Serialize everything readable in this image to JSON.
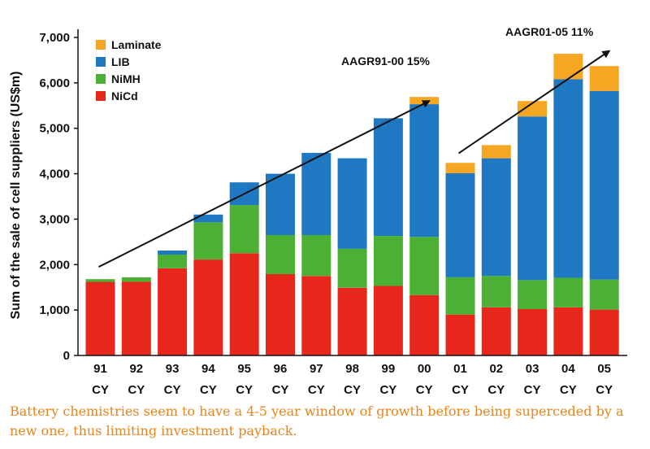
{
  "chart_data": {
    "type": "bar",
    "stacked": true,
    "categories": [
      "91",
      "92",
      "93",
      "94",
      "95",
      "96",
      "97",
      "98",
      "99",
      "00",
      "01",
      "02",
      "03",
      "04",
      "05"
    ],
    "category_suffix": "CY",
    "series": [
      {
        "name": "NiCd",
        "color": "#e8271c",
        "values": [
          1620,
          1620,
          1920,
          2110,
          2250,
          1790,
          1750,
          1490,
          1530,
          1330,
          900,
          1060,
          1020,
          1060,
          1010
        ]
      },
      {
        "name": "NiMH",
        "color": "#4cb034",
        "values": [
          60,
          100,
          300,
          820,
          1060,
          860,
          900,
          860,
          1100,
          1280,
          820,
          690,
          640,
          650,
          660
        ]
      },
      {
        "name": "LIB",
        "color": "#1f78c2",
        "values": [
          0,
          0,
          90,
          170,
          500,
          1350,
          1810,
          1990,
          2590,
          2920,
          2290,
          2590,
          3600,
          4370,
          4150
        ]
      },
      {
        "name": "Laminate",
        "color": "#f5a623",
        "values": [
          0,
          0,
          0,
          0,
          0,
          0,
          0,
          0,
          0,
          160,
          230,
          290,
          340,
          560,
          550
        ]
      }
    ],
    "ylabel": "Sum of the sale of cell suppliers (US$m)",
    "ylim": [
      0,
      7000
    ],
    "yticks": [
      "0",
      "1,000",
      "2,000",
      "3,000",
      "4,000",
      "5,000",
      "6,000",
      "7,000"
    ],
    "ytick_values": [
      0,
      1000,
      2000,
      3000,
      4000,
      5000,
      6000,
      7000
    ],
    "legend_order": [
      "Laminate",
      "LIB",
      "NiMH",
      "NiCd"
    ],
    "legend_position": "top-left",
    "annotations": [
      {
        "text": "AAGR91-00 15%",
        "arrow_from": [
          "91",
          1950
        ],
        "arrow_to": [
          "00",
          5600
        ]
      },
      {
        "text": "AAGR01-05 11%",
        "arrow_from": [
          "01",
          4450
        ],
        "arrow_to": [
          "05",
          6700
        ]
      }
    ]
  },
  "caption": "Battery chemistries seem to have a 4-5 year window of growth before being superceded by a new one, thus limiting investment payback."
}
